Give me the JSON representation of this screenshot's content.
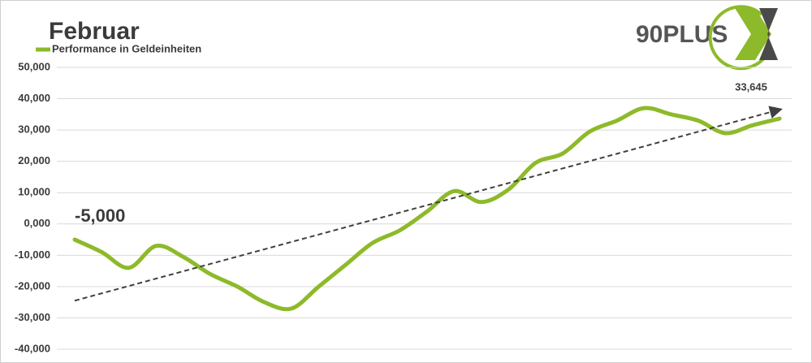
{
  "chart_data": {
    "type": "line",
    "title": "Februar",
    "logo": "90PLUS",
    "categories": [
      null,
      null,
      null,
      null,
      null,
      null,
      null,
      null,
      null,
      null,
      null,
      null,
      null,
      null,
      null,
      null,
      null,
      null,
      null,
      null,
      null,
      null,
      null,
      null,
      null,
      null,
      null
    ],
    "series": [
      {
        "name": "Performance in Geldeinheiten",
        "color": "#8dba2a",
        "values": [
          -5000,
          -9000,
          -14000,
          -7000,
          -10500,
          -16000,
          -20000,
          -25000,
          -27000,
          -20000,
          -13000,
          -6000,
          -2000,
          4000,
          10500,
          7000,
          11000,
          19500,
          22500,
          29500,
          33000,
          37000,
          35000,
          33000,
          29000,
          31500,
          33645
        ],
        "value_labels": [
          "-5,000",
          null,
          null,
          null,
          null,
          null,
          null,
          null,
          null,
          null,
          null,
          null,
          null,
          null,
          null,
          null,
          null,
          null,
          null,
          null,
          null,
          null,
          null,
          null,
          null,
          null,
          "33,645"
        ]
      }
    ],
    "trendline": {
      "start": -24500,
      "end": 36500,
      "color": "#404040"
    },
    "ylim": [
      -40000,
      50000
    ],
    "yticks": [
      {
        "value": -40000,
        "label": "-40,000"
      },
      {
        "value": -30000,
        "label": "-30,000"
      },
      {
        "value": -20000,
        "label": "-20,000"
      },
      {
        "value": -10000,
        "label": "-10,000"
      },
      {
        "value": 0,
        "label": "0,000"
      },
      {
        "value": 10000,
        "label": "10,000"
      },
      {
        "value": 20000,
        "label": "20,000"
      },
      {
        "value": 30000,
        "label": "30,000"
      },
      {
        "value": 40000,
        "label": "40,000"
      },
      {
        "value": 50000,
        "label": "50,000"
      }
    ],
    "grid": true,
    "legend": "top-left"
  }
}
